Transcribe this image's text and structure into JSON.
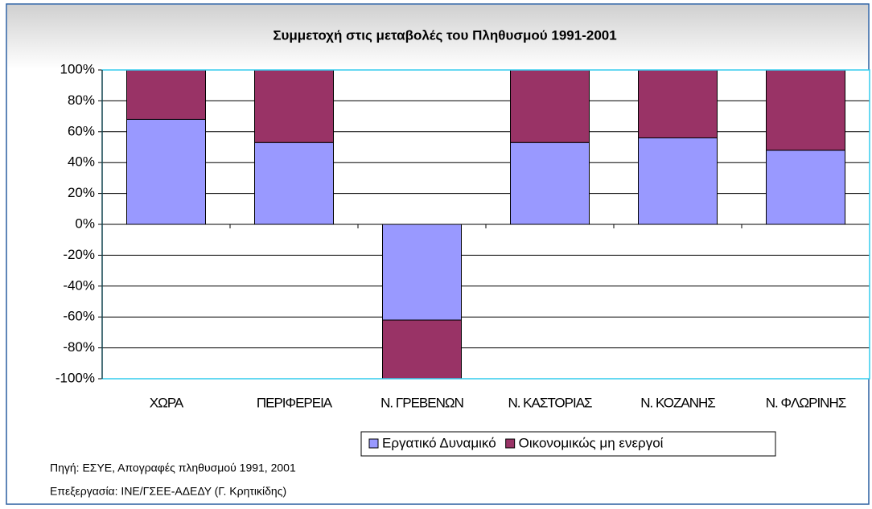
{
  "chart_data": {
    "type": "stacked_bar",
    "title": "Συμμετοχή στις μεταβολές του Πληθυσμού 1991-2001",
    "categories": [
      "ΧΩΡΑ",
      "ΠΕΡΙΦΕΡΕΙΑ",
      "Ν. ΓΡΕΒΕΝΩΝ",
      "Ν. ΚΑΣΤΟΡΙΑΣ",
      "Ν. ΚΟΖΑΝΗΣ",
      "Ν. ΦΛΩΡΙΝΗΣ"
    ],
    "series": [
      {
        "name": "Εργατικό Δυναμικό",
        "color": "#9999ff",
        "values": [
          68,
          53,
          -62,
          53,
          56,
          48
        ]
      },
      {
        "name": "Οικονομικώς μη ενεργοί",
        "color": "#993366",
        "values": [
          32,
          47,
          -38,
          47,
          44,
          52
        ]
      }
    ],
    "ylim": [
      -100,
      100
    ],
    "yticks": [
      {
        "value": -100,
        "label": "-100%"
      },
      {
        "value": -80,
        "label": "-80%"
      },
      {
        "value": -60,
        "label": "-60%"
      },
      {
        "value": -40,
        "label": "-40%"
      },
      {
        "value": -20,
        "label": "-20%"
      },
      {
        "value": 0,
        "label": "0%"
      },
      {
        "value": 20,
        "label": "20%"
      },
      {
        "value": 40,
        "label": "40%"
      },
      {
        "value": 60,
        "label": "60%"
      },
      {
        "value": 80,
        "label": "80%"
      },
      {
        "value": 100,
        "label": "100%"
      }
    ],
    "grid": true,
    "legend": "bottom",
    "notes": [
      "Πηγή: ΕΣΥΕ, Απογραφές πληθυσμού 1991, 2001",
      "Επεξεργασία: ΙΝΕ/ΓΣΕΕ-ΑΔΕΔΥ (Γ. Κρητικίδης)"
    ]
  }
}
